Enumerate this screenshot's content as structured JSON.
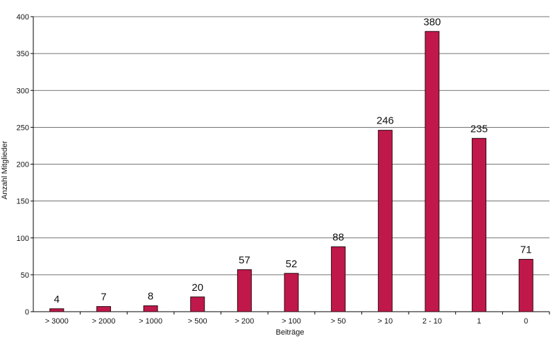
{
  "chart_data": {
    "type": "bar",
    "title": "",
    "xlabel": "Beiträge",
    "ylabel": "Anzahl Mitglieder",
    "categories": [
      "> 3000",
      "> 2000",
      "> 1000",
      "> 500",
      "> 200",
      "> 100",
      "> 50",
      "> 10",
      "2 - 10",
      "1",
      "0"
    ],
    "values": [
      4,
      7,
      8,
      20,
      57,
      52,
      88,
      246,
      380,
      235,
      71
    ],
    "data_labels": [
      "4",
      "7",
      "8",
      "20",
      "57",
      "52",
      "88",
      "246",
      "380",
      "235",
      "71"
    ],
    "ylim": [
      0,
      400
    ],
    "yticks": [
      0,
      50,
      100,
      150,
      200,
      250,
      300,
      350,
      400
    ],
    "grid": true,
    "legend": "none",
    "colors": {
      "bar_fill": "#c0184a",
      "bar_stroke": "#2a0a12",
      "grid": "#444444",
      "axis": "#000000",
      "text": "#111111"
    }
  }
}
